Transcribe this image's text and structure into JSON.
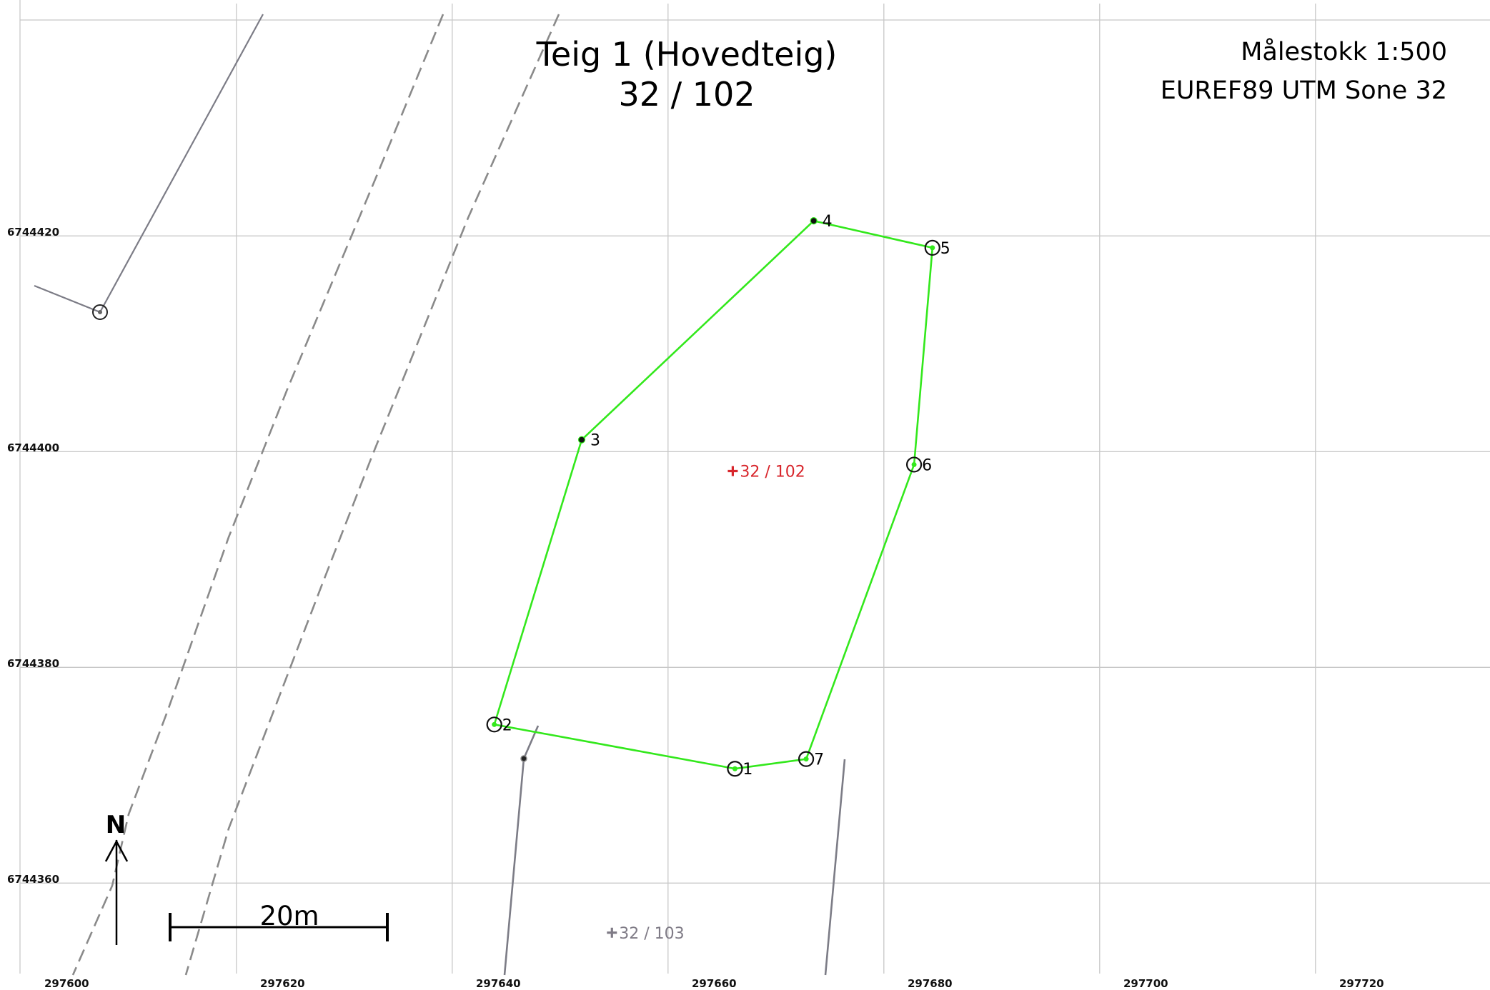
{
  "map": {
    "title_line1": "Teig 1 (Hovedteig)",
    "title_line2": "32  /  102",
    "scale_text": "Målestokk 1:500",
    "crs_text": "EUREF89 UTM Sone 32",
    "north_label": "N",
    "scale_bar_label": "20m",
    "colors": {
      "grid": "#c8c8c8",
      "boundary": "#33e81c",
      "neighbor_line": "#7c7c86",
      "road_line": "#8a8a8a",
      "own_parcel_label": "#d8262c",
      "neighbor_parcel_label": "#7f7b86"
    },
    "easting_ticks": [
      "297600",
      "297620",
      "297640",
      "297660",
      "297680",
      "297700",
      "297720"
    ],
    "northing_ticks": [
      "6744420",
      "6744400",
      "6744380",
      "6744360"
    ],
    "boundary_points": [
      {
        "label": "1",
        "e": 297666.2,
        "n": 6744370.6,
        "marker": "circle"
      },
      {
        "label": "2",
        "e": 297643.9,
        "n": 6744374.7,
        "marker": "circle"
      },
      {
        "label": "3",
        "e": 297652.0,
        "n": 6744401.1,
        "marker": "dot"
      },
      {
        "label": "4",
        "e": 297673.5,
        "n": 6744421.4,
        "marker": "dot"
      },
      {
        "label": "5",
        "e": 297684.5,
        "n": 6744418.9,
        "marker": "circle"
      },
      {
        "label": "6",
        "e": 297682.8,
        "n": 6744398.8,
        "marker": "circle"
      },
      {
        "label": "7",
        "e": 297672.8,
        "n": 6744371.5,
        "marker": "circle"
      }
    ],
    "boundary_order": [
      "1",
      "2",
      "3",
      "4",
      "5",
      "6",
      "7"
    ],
    "own_parcel_label": {
      "text": "32 / 102",
      "e": 297666.0,
      "n": 6744398.2
    },
    "neighbor_parcel_label": {
      "text": "32 / 103",
      "e": 297654.8,
      "n": 6744355.4
    }
  }
}
